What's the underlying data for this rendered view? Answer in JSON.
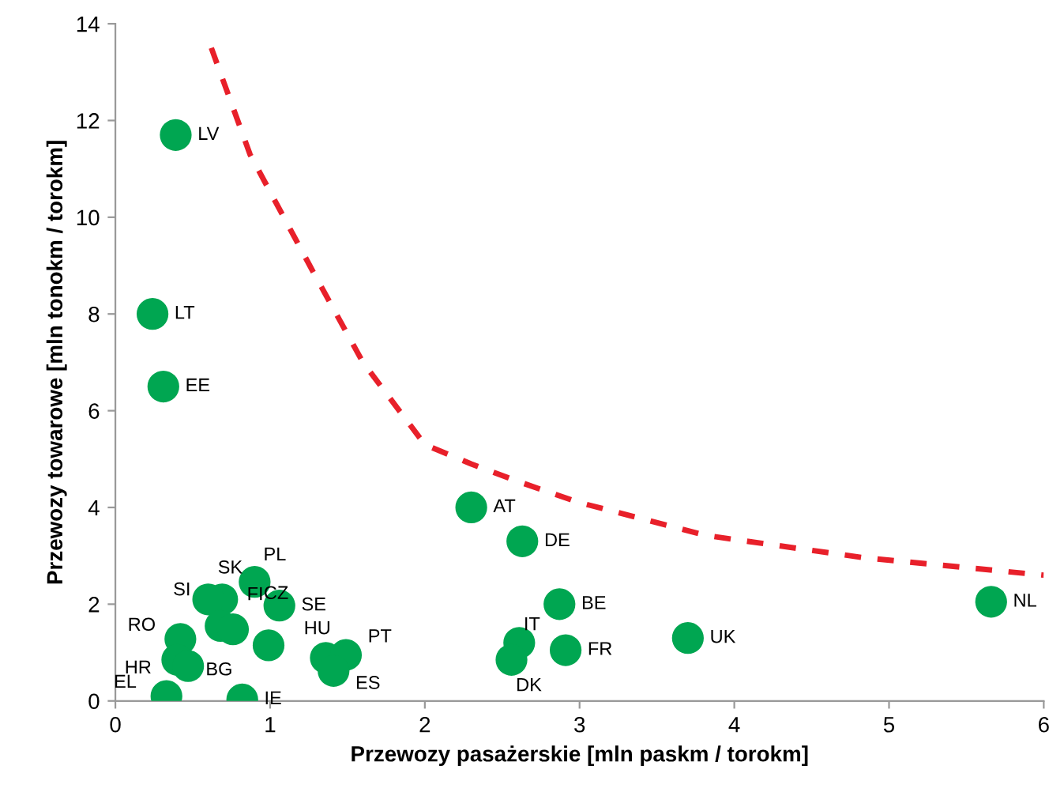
{
  "chart_data": {
    "type": "scatter",
    "xlabel": "Przewozy pasażerskie [mln paskm / torokm]",
    "ylabel": "Przewozy towarowe [mln tonokm / torokm]",
    "xlim": [
      0,
      6
    ],
    "ylim": [
      0,
      14
    ],
    "xticks": [
      0,
      1,
      2,
      3,
      4,
      5,
      6
    ],
    "yticks": [
      0,
      2,
      4,
      6,
      8,
      10,
      12,
      14
    ],
    "grid": false,
    "legend": false,
    "series": [
      {
        "color": "#00a651",
        "marker": "circle",
        "x": [
          0.39,
          0.24,
          0.31,
          2.3,
          2.63,
          2.87,
          2.61,
          2.56,
          2.91,
          3.7,
          5.66,
          0.9,
          0.69,
          0.6,
          1.06,
          0.68,
          0.76,
          0.99,
          0.42,
          0.4,
          0.47,
          0.33,
          0.82,
          1.36,
          1.49,
          1.41
        ],
        "values": [
          11.7,
          8.0,
          6.5,
          4.0,
          3.3,
          2.0,
          1.2,
          0.85,
          1.05,
          1.3,
          2.05,
          2.46,
          2.1,
          2.1,
          1.97,
          1.55,
          1.48,
          1.15,
          1.28,
          0.85,
          0.72,
          0.1,
          0.03,
          0.89,
          0.95,
          0.62
        ],
        "value_labels": [
          "LV",
          "LT",
          "EE",
          "AT",
          "DE",
          "BE",
          "IT",
          "DK",
          "FR",
          "UK",
          "NL",
          "PL",
          "SK",
          "SI",
          "SE",
          "FI",
          "CZ",
          null,
          "RO",
          "HR",
          "BG",
          "EL",
          "IE",
          "HU",
          "PT",
          "ES"
        ]
      },
      {
        "type": "line",
        "color": "#e8202a",
        "line_style": "dashed",
        "marker": "none",
        "x": [
          0.62,
          0.87,
          1.29,
          1.6,
          2.0,
          2.3,
          2.59,
          3.0,
          3.82,
          4.84,
          6.0
        ],
        "values": [
          13.5,
          11.3,
          8.8,
          7.0,
          5.3,
          4.9,
          4.55,
          4.1,
          3.42,
          2.96,
          2.6
        ]
      }
    ]
  }
}
